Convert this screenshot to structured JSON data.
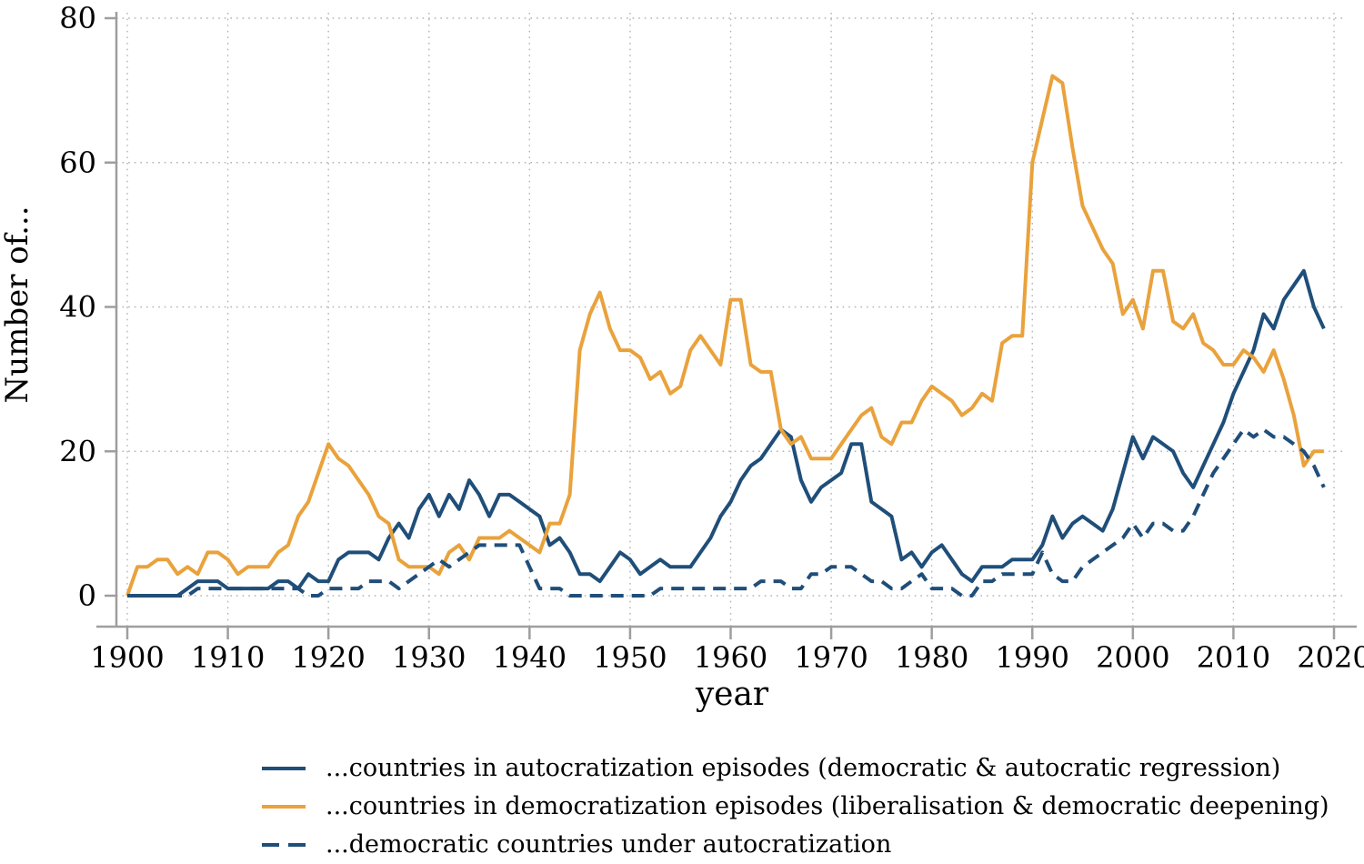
{
  "figure": {
    "ylabel": "Number of...",
    "xlabel": "year",
    "background": "#ffffff",
    "grid_color": "#b3b3b3",
    "spine_color": "#9e9e9e",
    "text_color": "#000000"
  },
  "legend": {
    "items": [
      {
        "label": "...countries in autocratization episodes (democratic & autocratic regression)",
        "color": "#1F4E79",
        "dash": "solid"
      },
      {
        "label": "...countries in democratization episodes (liberalisation & democratic deepening)",
        "color": "#E9A23C",
        "dash": "solid"
      },
      {
        "label": "...democratic countries under autocratization",
        "color": "#1F4E79",
        "dash": "dashed"
      }
    ]
  },
  "chart_data": {
    "type": "line",
    "title": "",
    "xlabel": "year",
    "ylabel": "Number of...",
    "xlim": [
      1899,
      2021
    ],
    "ylim": [
      0,
      80
    ],
    "x_ticks": [
      1900,
      1910,
      1920,
      1930,
      1940,
      1950,
      1960,
      1970,
      1980,
      1990,
      2000,
      2010,
      2020
    ],
    "y_ticks": [
      0,
      20,
      40,
      60,
      80
    ],
    "grid": "dotted",
    "legend_position": "below",
    "x_start": 1900,
    "x": "years 1900-2019 inclusive, step 1",
    "series": [
      {
        "name": "...countries in autocratization episodes (democratic & autocratic regression)",
        "color": "#1F4E79",
        "dash": "solid",
        "values": [
          0,
          0,
          0,
          0,
          0,
          0,
          1,
          2,
          2,
          2,
          1,
          1,
          1,
          1,
          1,
          2,
          2,
          1,
          3,
          2,
          2,
          5,
          6,
          6,
          6,
          5,
          8,
          10,
          8,
          12,
          14,
          11,
          14,
          12,
          16,
          14,
          11,
          14,
          14,
          13,
          12,
          11,
          7,
          8,
          6,
          3,
          3,
          2,
          4,
          6,
          5,
          3,
          4,
          5,
          4,
          4,
          4,
          6,
          8,
          11,
          13,
          16,
          18,
          19,
          21,
          23,
          22,
          16,
          13,
          15,
          16,
          17,
          21,
          21,
          13,
          12,
          11,
          5,
          6,
          4,
          6,
          7,
          5,
          3,
          2,
          4,
          4,
          4,
          5,
          5,
          5,
          7,
          11,
          8,
          10,
          11,
          10,
          9,
          12,
          17,
          22,
          19,
          22,
          21,
          20,
          17,
          15,
          18,
          21,
          24,
          28,
          31,
          34,
          39,
          37,
          41,
          43,
          45,
          40,
          37
        ]
      },
      {
        "name": "...countries in democratization episodes (liberalisation & democratic deepening)",
        "color": "#E9A23C",
        "dash": "solid",
        "values": [
          0,
          4,
          4,
          5,
          5,
          3,
          4,
          3,
          6,
          6,
          5,
          3,
          4,
          4,
          4,
          6,
          7,
          11,
          13,
          17,
          21,
          19,
          18,
          16,
          14,
          11,
          10,
          5,
          4,
          4,
          4,
          3,
          6,
          7,
          5,
          8,
          8,
          8,
          9,
          8,
          7,
          6,
          10,
          10,
          14,
          34,
          39,
          42,
          37,
          34,
          34,
          33,
          30,
          31,
          28,
          29,
          34,
          36,
          34,
          32,
          41,
          41,
          32,
          31,
          31,
          23,
          21,
          22,
          19,
          19,
          19,
          21,
          23,
          25,
          26,
          22,
          21,
          24,
          24,
          27,
          29,
          28,
          27,
          25,
          26,
          28,
          27,
          35,
          36,
          36,
          60,
          66,
          72,
          71,
          62,
          54,
          51,
          48,
          46,
          39,
          41,
          37,
          45,
          45,
          38,
          37,
          39,
          35,
          34,
          32,
          32,
          34,
          33,
          31,
          34,
          30,
          25,
          18,
          20,
          20
        ]
      },
      {
        "name": "...democratic countries under autocratization",
        "color": "#1F4E79",
        "dash": "dashed",
        "values": [
          0,
          0,
          0,
          0,
          0,
          0,
          0,
          1,
          1,
          1,
          1,
          1,
          1,
          1,
          1,
          1,
          1,
          1,
          0,
          0,
          1,
          1,
          1,
          1,
          2,
          2,
          2,
          1,
          2,
          3,
          4,
          5,
          4,
          5,
          6,
          7,
          7,
          7,
          7,
          7,
          4,
          1,
          1,
          1,
          0,
          0,
          0,
          0,
          0,
          0,
          0,
          0,
          0,
          1,
          1,
          1,
          1,
          1,
          1,
          1,
          1,
          1,
          1,
          2,
          2,
          2,
          1,
          1,
          3,
          3,
          4,
          4,
          4,
          3,
          2,
          2,
          1,
          1,
          2,
          3,
          1,
          1,
          1,
          0,
          0,
          2,
          2,
          3,
          3,
          3,
          3,
          6,
          3,
          2,
          2,
          4,
          5,
          6,
          7,
          8,
          10,
          8,
          10,
          10,
          9,
          9,
          11,
          14,
          17,
          19,
          21,
          23,
          22,
          23,
          22,
          22,
          21,
          20,
          18,
          15
        ]
      }
    ]
  }
}
